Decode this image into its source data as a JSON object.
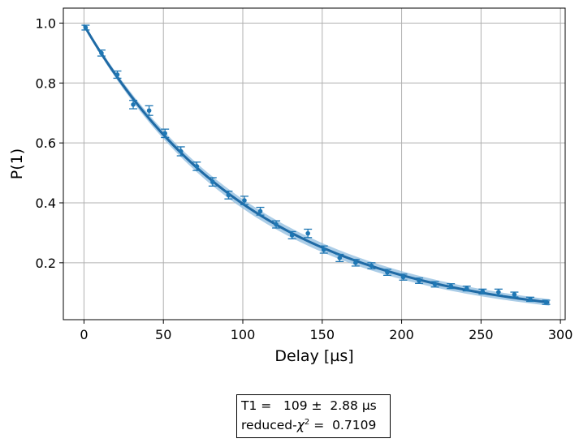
{
  "chart_data": {
    "type": "scatter",
    "xlabel": "Delay [µs]",
    "ylabel": "P(1)",
    "xlim": [
      -13,
      303
    ],
    "ylim": [
      0.01,
      1.05
    ],
    "xticks": [
      0,
      50,
      100,
      150,
      200,
      250,
      300
    ],
    "yticks": [
      0.2,
      0.4,
      0.6,
      0.8,
      1.0
    ],
    "xtick_labels": [
      "0",
      "50",
      "100",
      "150",
      "200",
      "250",
      "300"
    ],
    "ytick_labels": [
      "0.2",
      "0.4",
      "0.6",
      "0.8",
      "1.0"
    ],
    "grid": true,
    "colors": {
      "data": "#1f77b4",
      "fit": "#1f6aa5",
      "band": "#8fbcdf",
      "grid": "#b0b0b0"
    },
    "series": [
      {
        "kind": "data-with-errorbars",
        "x": [
          1,
          11,
          21,
          31,
          41,
          51,
          61,
          71,
          81,
          91,
          101,
          111,
          121,
          131,
          141,
          151,
          161,
          171,
          181,
          191,
          201,
          211,
          221,
          231,
          241,
          251,
          261,
          271,
          281,
          291
        ],
        "y": [
          0.985,
          0.9,
          0.828,
          0.728,
          0.708,
          0.632,
          0.572,
          0.522,
          0.47,
          0.426,
          0.408,
          0.372,
          0.328,
          0.292,
          0.298,
          0.244,
          0.216,
          0.2,
          0.19,
          0.168,
          0.152,
          0.14,
          0.128,
          0.122,
          0.114,
          0.104,
          0.102,
          0.094,
          0.078,
          0.068
        ],
        "yerr": [
          0.008,
          0.01,
          0.012,
          0.014,
          0.016,
          0.014,
          0.015,
          0.014,
          0.014,
          0.013,
          0.014,
          0.013,
          0.012,
          0.012,
          0.014,
          0.012,
          0.012,
          0.011,
          0.01,
          0.01,
          0.01,
          0.009,
          0.009,
          0.008,
          0.008,
          0.008,
          0.01,
          0.008,
          0.007,
          0.007
        ]
      },
      {
        "kind": "exponential-fit",
        "amplitude": 0.993,
        "tau": 109,
        "tau_err": 2.88,
        "x_range": [
          0,
          293
        ]
      }
    ],
    "fit_report": {
      "line1": "T1 =   109 ±  2.88 µs",
      "line2_prefix": "reduced-",
      "line2_chi": "χ",
      "line2_sup": "2",
      "line2_suffix": " =  0.7109"
    }
  }
}
